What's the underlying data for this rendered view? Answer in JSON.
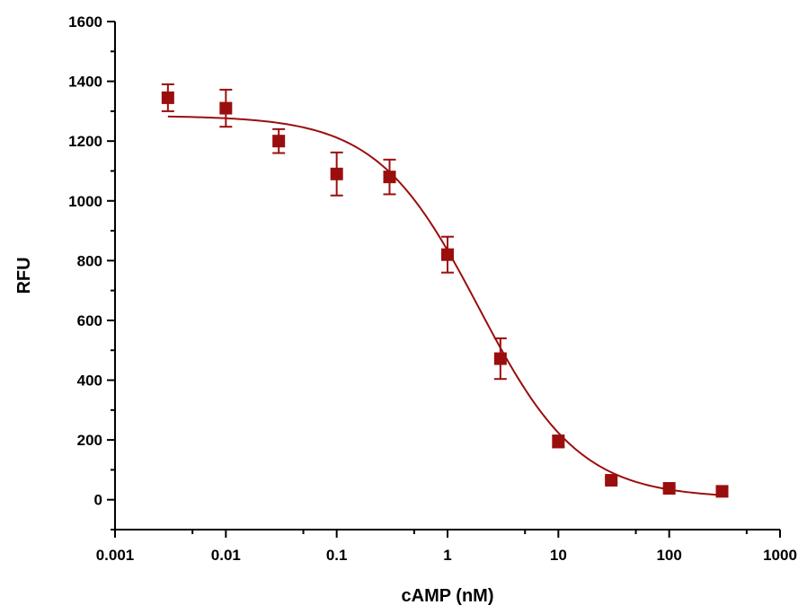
{
  "chart_data": {
    "type": "scatter",
    "title": "",
    "xlabel": "cAMP (nM)",
    "ylabel": "RFU",
    "xscale": "log",
    "xlim": [
      0.001,
      1000
    ],
    "ylim": [
      -100,
      1600
    ],
    "xticks": [
      0.001,
      0.01,
      0.1,
      1,
      10,
      100,
      1000
    ],
    "xtick_labels": [
      "0.001",
      "0.01",
      "0.1",
      "1",
      "10",
      "100",
      "1000"
    ],
    "yticks": [
      0,
      200,
      400,
      600,
      800,
      1000,
      1200,
      1400,
      1600
    ],
    "ytick_labels": [
      "0",
      "200",
      "400",
      "600",
      "800",
      "1000",
      "1200",
      "1400",
      "1600"
    ],
    "grid": false,
    "color": "#9b0e0e",
    "series": [
      {
        "x": [
          0.003,
          0.01,
          0.03,
          0.1,
          0.3,
          1,
          3,
          10,
          30,
          100,
          300
        ],
        "y": [
          1345,
          1310,
          1200,
          1090,
          1080,
          820,
          472,
          195,
          65,
          38,
          28
        ],
        "err": [
          45,
          62,
          40,
          72,
          58,
          60,
          68,
          20,
          8,
          6,
          5
        ]
      }
    ],
    "fit": {
      "type": "4PL",
      "top": 1285,
      "bottom": 5,
      "ec50": 1.9,
      "hill": 0.95
    }
  }
}
